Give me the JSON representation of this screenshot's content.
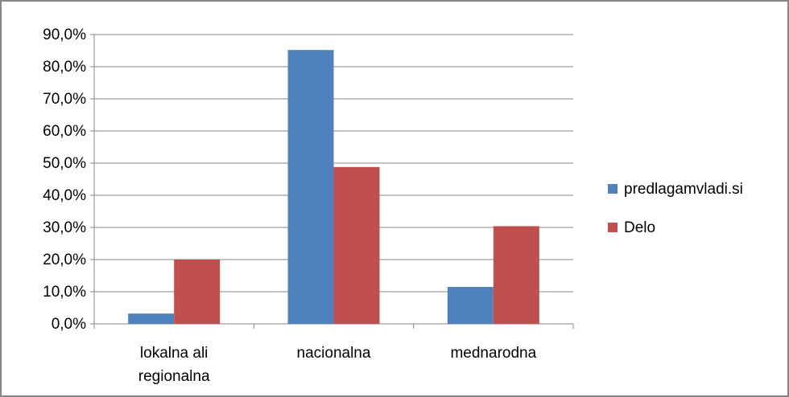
{
  "chart_data": {
    "type": "bar",
    "categories": [
      [
        "lokalna ali",
        "regionalna"
      ],
      [
        "nacionalna"
      ],
      [
        "mednarodna"
      ]
    ],
    "series": [
      {
        "name": "predlagamvladi.si",
        "color": "#4f81bd",
        "values": [
          3.2,
          85.2,
          11.5
        ]
      },
      {
        "name": "Delo",
        "color": "#c0504d",
        "values": [
          20.0,
          48.8,
          30.4
        ]
      }
    ],
    "ylim": [
      0,
      90
    ],
    "yticks": [
      "0,0%",
      "10,0%",
      "20,0%",
      "30,0%",
      "40,0%",
      "50,0%",
      "60,0%",
      "70,0%",
      "80,0%",
      "90,0%"
    ],
    "grid": true,
    "legend_position": "right",
    "colors": {
      "gridline": "#868686",
      "axis": "#868686",
      "frame": "#868686"
    }
  }
}
